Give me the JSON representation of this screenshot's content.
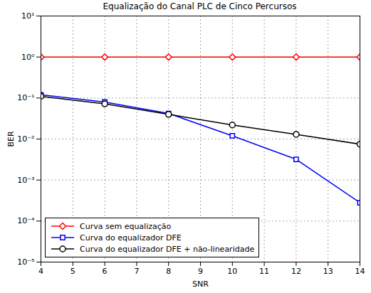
{
  "chart_data": {
    "type": "line",
    "title": "Equalização do Canal PLC de Cinco Percursos",
    "x_label": "SNR",
    "y_label": "BER",
    "x": [
      4,
      6,
      8,
      10,
      12,
      14
    ],
    "series": [
      {
        "name": "Curva sem equalização",
        "color": "#ff0000",
        "marker": "diamond",
        "line_style": "solid",
        "values": [
          1,
          1,
          1,
          1,
          1,
          1
        ]
      },
      {
        "name": "Curva do equalizador DFE",
        "color": "#0000ff",
        "marker": "square",
        "line_style": "solid",
        "values": [
          0.12,
          0.08,
          0.042,
          0.012,
          0.0032,
          0.00028
        ]
      },
      {
        "name": "Curva do equalizador DFE + não-linearidade",
        "color": "#000000",
        "marker": "circle",
        "line_style": "solid",
        "values": [
          0.11,
          0.072,
          0.04,
          0.022,
          0.013,
          0.0075
        ]
      }
    ],
    "xlim": [
      4,
      14
    ],
    "xticks": [
      4,
      5,
      6,
      7,
      8,
      9,
      10,
      11,
      12,
      13,
      14
    ],
    "ylim": [
      1e-05,
      10
    ],
    "yticks": [
      {
        "value": 1e-05,
        "label": "10⁻⁵"
      },
      {
        "value": 0.0001,
        "label": "10⁻⁴"
      },
      {
        "value": 0.001,
        "label": "10⁻³"
      },
      {
        "value": 0.01,
        "label": "10⁻²"
      },
      {
        "value": 0.1,
        "label": "10⁻¹"
      },
      {
        "value": 1,
        "label": "10⁰"
      },
      {
        "value": 10,
        "label": "10¹"
      }
    ],
    "log": "y",
    "grid": true,
    "legend": "lower left"
  }
}
